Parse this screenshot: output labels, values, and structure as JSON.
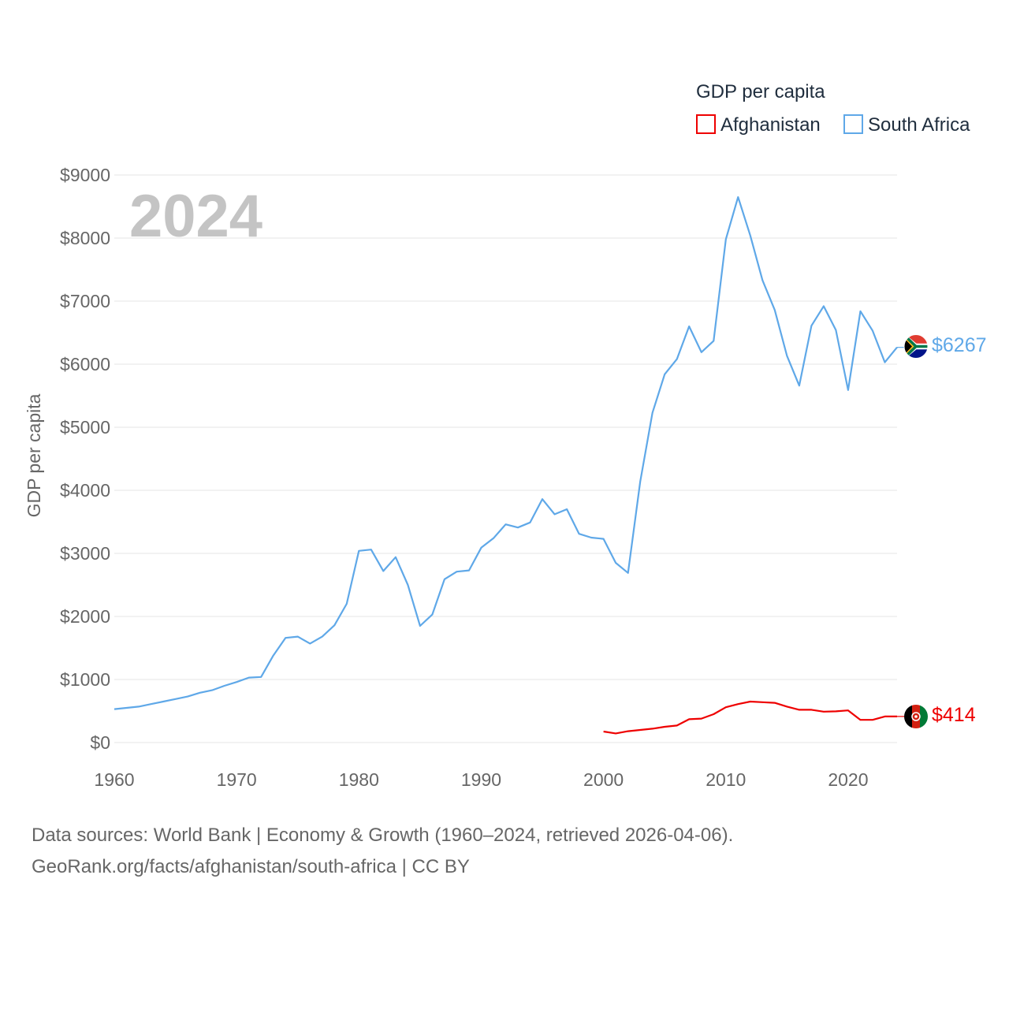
{
  "chart_data": {
    "type": "line",
    "legend_title": "GDP per capita",
    "ylabel": "GDP per capita",
    "xlabel": "",
    "year_label": "2024",
    "xlim": [
      1960,
      2024
    ],
    "ylim": [
      0,
      9000
    ],
    "x_ticks": [
      "1960",
      "1970",
      "1980",
      "1990",
      "2000",
      "2010",
      "2020"
    ],
    "y_ticks": [
      "$0",
      "$1000",
      "$2000",
      "$3000",
      "$4000",
      "$5000",
      "$6000",
      "$7000",
      "$8000",
      "$9000"
    ],
    "legend_position": "top-right",
    "grid": true,
    "series": [
      {
        "name": "Afghanistan",
        "color": "#ee0000",
        "end_label": "$414",
        "flag_icon": "afghanistan-flag-icon",
        "x": [
          2000,
          2001,
          2002,
          2003,
          2004,
          2005,
          2006,
          2007,
          2008,
          2009,
          2010,
          2011,
          2012,
          2013,
          2014,
          2015,
          2016,
          2017,
          2018,
          2019,
          2020,
          2021,
          2022,
          2023,
          2024
        ],
        "values": [
          175,
          145,
          180,
          200,
          220,
          250,
          270,
          370,
          380,
          450,
          560,
          610,
          650,
          640,
          630,
          570,
          520,
          520,
          490,
          495,
          510,
          360,
          360,
          414,
          414
        ]
      },
      {
        "name": "South Africa",
        "color": "#5fa8e8",
        "end_label": "$6267",
        "flag_icon": "south-africa-flag-icon",
        "x": [
          1960,
          1961,
          1962,
          1963,
          1964,
          1965,
          1966,
          1967,
          1968,
          1969,
          1970,
          1971,
          1972,
          1973,
          1974,
          1975,
          1976,
          1977,
          1978,
          1979,
          1980,
          1981,
          1982,
          1983,
          1984,
          1985,
          1986,
          1987,
          1988,
          1989,
          1990,
          1991,
          1992,
          1993,
          1994,
          1995,
          1996,
          1997,
          1998,
          1999,
          2000,
          2001,
          2002,
          2003,
          2004,
          2005,
          2006,
          2007,
          2008,
          2009,
          2010,
          2011,
          2012,
          2013,
          2014,
          2015,
          2016,
          2017,
          2018,
          2019,
          2020,
          2021,
          2022,
          2023,
          2024
        ],
        "values": [
          530,
          550,
          570,
          610,
          650,
          690,
          730,
          790,
          830,
          900,
          960,
          1030,
          1040,
          1380,
          1660,
          1680,
          1570,
          1680,
          1860,
          2200,
          3040,
          3060,
          2720,
          2940,
          2500,
          1850,
          2030,
          2590,
          2710,
          2730,
          3090,
          3240,
          3460,
          3410,
          3490,
          3860,
          3620,
          3700,
          3310,
          3250,
          3230,
          2850,
          2690,
          4140,
          5230,
          5840,
          6080,
          6600,
          6190,
          6370,
          7980,
          8650,
          8040,
          7330,
          6860,
          6130,
          5660,
          6610,
          6920,
          6540,
          5590,
          6840,
          6530,
          6030,
          6267
        ]
      }
    ]
  },
  "footer": {
    "source_line": "Data sources: World Bank | Economy & Growth (1960–2024, retrieved 2026-04-06).",
    "credit_line": "GeoRank.org/facts/afghanistan/south-africa | CC BY"
  }
}
